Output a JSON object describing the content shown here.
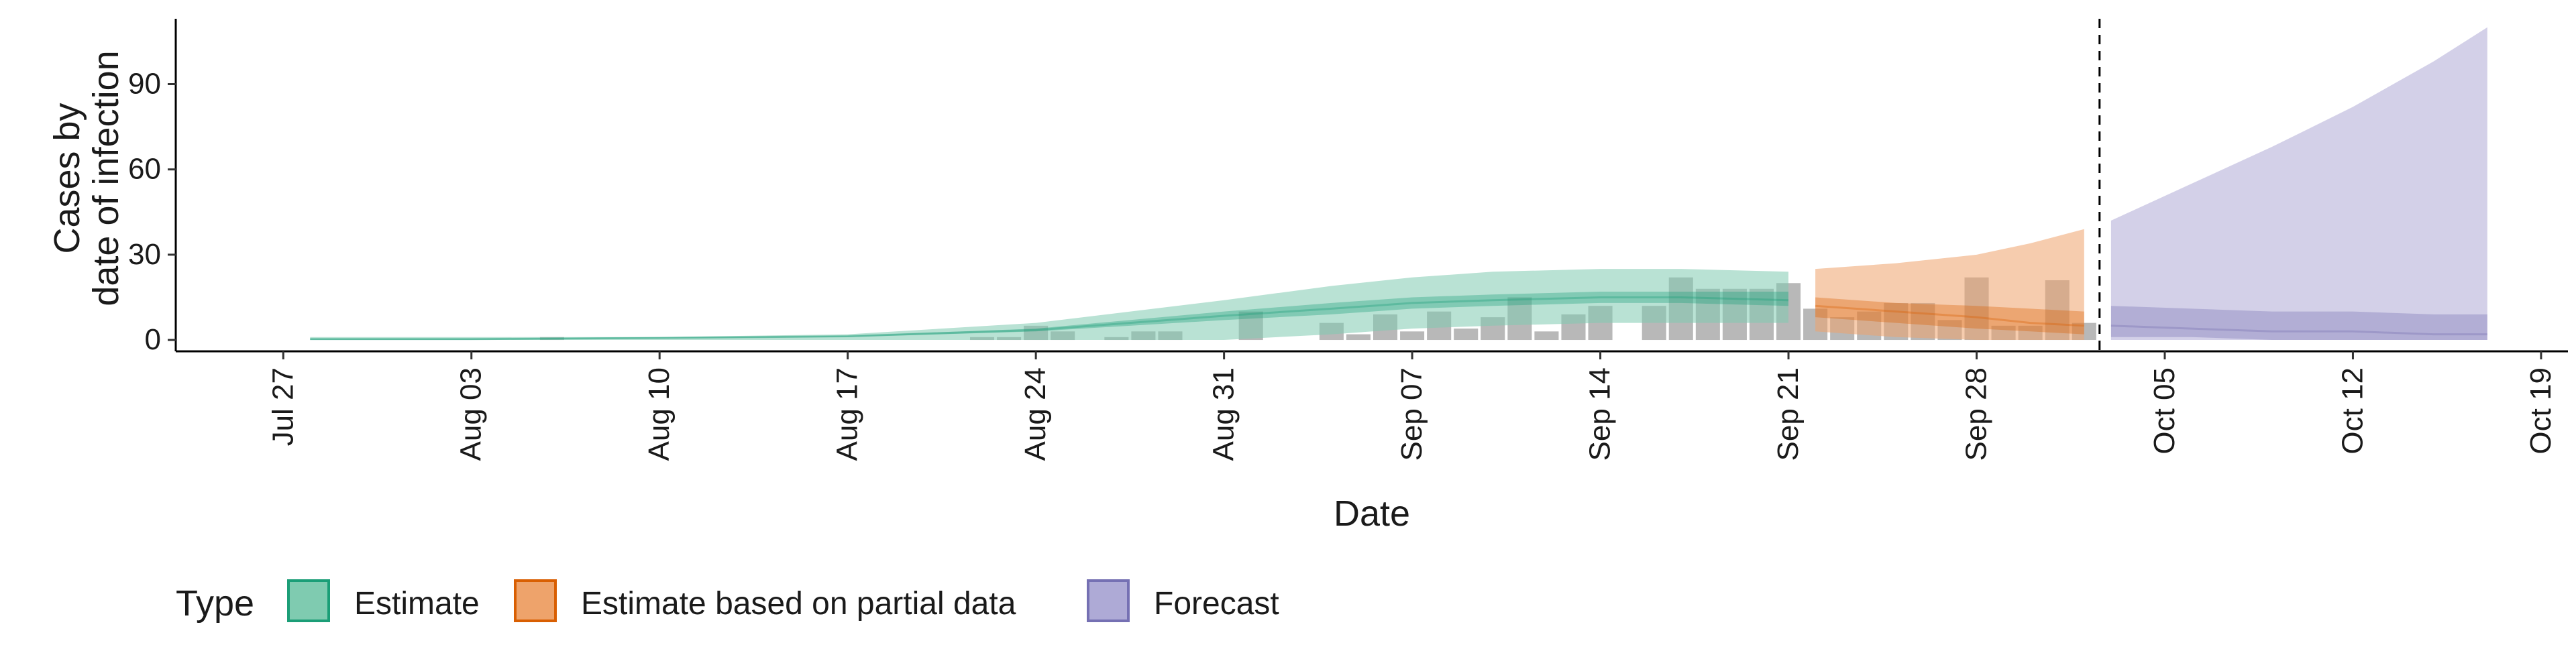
{
  "chart_data": {
    "type": "area",
    "xlabel": "Date",
    "ylabel": [
      "Cases by",
      "date of infection"
    ],
    "x_range": [
      "2020-07-23",
      "2020-10-20"
    ],
    "ylim": [
      -4,
      113
    ],
    "y_ticks": [
      0,
      30,
      60,
      90
    ],
    "x_ticks": [
      {
        "date": "2020-07-27",
        "label": "Jul 27"
      },
      {
        "date": "2020-08-03",
        "label": "Aug 03"
      },
      {
        "date": "2020-08-10",
        "label": "Aug 10"
      },
      {
        "date": "2020-08-17",
        "label": "Aug 17"
      },
      {
        "date": "2020-08-24",
        "label": "Aug 24"
      },
      {
        "date": "2020-08-31",
        "label": "Aug 31"
      },
      {
        "date": "2020-09-07",
        "label": "Sep 07"
      },
      {
        "date": "2020-09-14",
        "label": "Sep 14"
      },
      {
        "date": "2020-09-21",
        "label": "Sep 21"
      },
      {
        "date": "2020-09-28",
        "label": "Sep 28"
      },
      {
        "date": "2020-10-05",
        "label": "Oct 05"
      },
      {
        "date": "2020-10-12",
        "label": "Oct 12"
      },
      {
        "date": "2020-10-19",
        "label": "Oct 19"
      }
    ],
    "grid": false,
    "legend": {
      "position": "bottom",
      "title": "Type",
      "entries": [
        {
          "label": "Estimate",
          "fill": "#7fcbb0",
          "stroke": "#1b9e77"
        },
        {
          "label": "Estimate based on partial data",
          "fill": "#eea36b",
          "stroke": "#d95f02"
        },
        {
          "label": "Forecast",
          "fill": "#aeaad6",
          "stroke": "#7570b3"
        }
      ]
    },
    "forecast_date": "2020-10-02",
    "observed_cases": {
      "dates": [
        "2020-08-06",
        "2020-08-22",
        "2020-08-23",
        "2020-08-24",
        "2020-08-25",
        "2020-08-26",
        "2020-08-27",
        "2020-08-28",
        "2020-08-29",
        "2020-08-30",
        "2020-08-31",
        "2020-09-01",
        "2020-09-02",
        "2020-09-03",
        "2020-09-04",
        "2020-09-05",
        "2020-09-06",
        "2020-09-07",
        "2020-09-08",
        "2020-09-09",
        "2020-09-10",
        "2020-09-11",
        "2020-09-12",
        "2020-09-13",
        "2020-09-14",
        "2020-09-15",
        "2020-09-16",
        "2020-09-17",
        "2020-09-18",
        "2020-09-19",
        "2020-09-20",
        "2020-09-21",
        "2020-09-22",
        "2020-09-23",
        "2020-09-24",
        "2020-09-25",
        "2020-09-26",
        "2020-09-27",
        "2020-09-28",
        "2020-09-29",
        "2020-09-30",
        "2020-10-01",
        "2020-10-02"
      ],
      "values": [
        1,
        1,
        1,
        5,
        3,
        0,
        1,
        3,
        3,
        0,
        0,
        10,
        0,
        0,
        6,
        2,
        9,
        3,
        10,
        4,
        8,
        15,
        3,
        9,
        12,
        0,
        12,
        22,
        18,
        18,
        18,
        20,
        11,
        8,
        10,
        13,
        13,
        7,
        22,
        5,
        5,
        21,
        6
      ]
    },
    "series": [
      {
        "name": "Estimate",
        "dates": [
          "2020-07-28",
          "2020-08-03",
          "2020-08-10",
          "2020-08-17",
          "2020-08-24",
          "2020-08-31",
          "2020-09-04",
          "2020-09-07",
          "2020-09-10",
          "2020-09-14",
          "2020-09-17",
          "2020-09-21"
        ],
        "outer_low": [
          0,
          0,
          0,
          0,
          0,
          0,
          2,
          4,
          5,
          6,
          6,
          6
        ],
        "outer_high": [
          1,
          1,
          1,
          2,
          6,
          14,
          19,
          22,
          24,
          25,
          25,
          24
        ],
        "inner_low": [
          0,
          0,
          0.5,
          1,
          3,
          7,
          9,
          11,
          12,
          13,
          13,
          12
        ],
        "inner_high": [
          0.5,
          0.5,
          1,
          1.5,
          4,
          10,
          13,
          15,
          16,
          17,
          17,
          17
        ],
        "median": [
          0.3,
          0.3,
          0.7,
          1.3,
          3.5,
          8.5,
          11,
          13,
          14,
          15,
          15,
          14
        ]
      },
      {
        "name": "Estimate based on partial data",
        "dates": [
          "2020-09-22",
          "2020-09-25",
          "2020-09-28",
          "2020-09-30",
          "2020-10-02"
        ],
        "outer_low": [
          3,
          1,
          0,
          0,
          0
        ],
        "outer_high": [
          25,
          27,
          30,
          34,
          39
        ],
        "inner_low": [
          8,
          6,
          4,
          3,
          2
        ],
        "inner_high": [
          15,
          13,
          12,
          11,
          10
        ],
        "median": [
          12,
          10,
          8,
          6,
          5
        ]
      },
      {
        "name": "Forecast",
        "dates": [
          "2020-10-03",
          "2020-10-06",
          "2020-10-09",
          "2020-10-12",
          "2020-10-15",
          "2020-10-17"
        ],
        "outer_low": [
          0,
          0,
          0,
          0,
          0,
          0
        ],
        "outer_high": [
          42,
          55,
          68,
          82,
          98,
          110
        ],
        "inner_low": [
          1,
          1,
          0,
          0,
          0,
          0
        ],
        "inner_high": [
          12,
          11,
          10,
          10,
          9,
          9
        ],
        "median": [
          5,
          4,
          3,
          3,
          2,
          2
        ]
      }
    ]
  }
}
